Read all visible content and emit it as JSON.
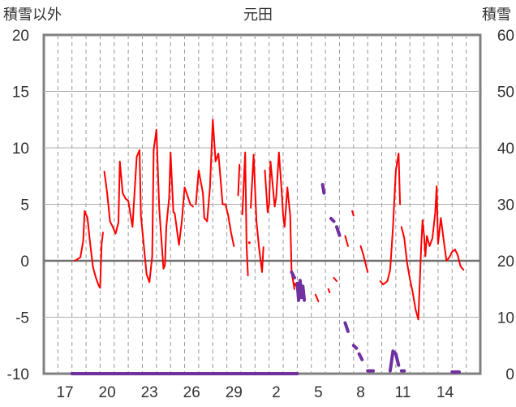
{
  "chart_data": {
    "type": "line",
    "title": "元田",
    "left_axis_label": "積雪以外",
    "right_axis_label": "積雪",
    "left_axis": {
      "range": [
        -10,
        20
      ],
      "ticks": [
        -10,
        -5,
        0,
        5,
        10,
        15,
        20
      ],
      "tick_labels": [
        "-10",
        "-5",
        "0",
        "5",
        "10",
        "15",
        "20"
      ]
    },
    "right_axis": {
      "range": [
        0,
        60
      ],
      "ticks": [
        0,
        10,
        20,
        30,
        40,
        50,
        60
      ],
      "tick_labels": [
        "0",
        "10",
        "20",
        "30",
        "40",
        "50",
        "60"
      ]
    },
    "x_axis": {
      "range": [
        0,
        31
      ],
      "tick_positions": [
        1,
        4,
        7,
        10,
        13,
        16,
        19,
        22,
        25,
        28
      ],
      "tick_labels": [
        "17",
        "20",
        "23",
        "26",
        "29",
        "2",
        "5",
        "8",
        "11",
        "14"
      ]
    },
    "grid": {
      "horizontal": true,
      "vertical_dashed": true
    },
    "series": [
      {
        "axis": "left",
        "color": "#ff0000",
        "segments": [
          [
            [
              2.2,
              0.0
            ],
            [
              2.6,
              0.3
            ],
            [
              2.8,
              1.8
            ],
            [
              2.9,
              4.4
            ],
            [
              3.1,
              3.8
            ],
            [
              3.3,
              1.4
            ],
            [
              3.5,
              -0.6
            ],
            [
              3.7,
              -1.5
            ],
            [
              3.9,
              -2.2
            ],
            [
              4.0,
              -2.4
            ],
            [
              4.1,
              1.4
            ],
            [
              4.2,
              2.5
            ]
          ],
          [
            [
              4.3,
              7.9
            ],
            [
              4.5,
              6.0
            ],
            [
              4.7,
              3.5
            ],
            [
              4.9,
              3.0
            ],
            [
              5.1,
              2.4
            ],
            [
              5.3,
              3.4
            ],
            [
              5.4,
              8.8
            ],
            [
              5.6,
              6.0
            ],
            [
              5.8,
              5.5
            ],
            [
              6.0,
              5.3
            ],
            [
              6.3,
              3.0
            ],
            [
              6.6,
              9.2
            ],
            [
              6.8,
              9.8
            ],
            [
              6.9,
              4.0
            ],
            [
              7.1,
              1.4
            ],
            [
              7.3,
              -1.2
            ],
            [
              7.5,
              -1.9
            ],
            [
              7.7,
              0.4
            ],
            [
              7.8,
              9.8
            ],
            [
              8.0,
              11.6
            ],
            [
              8.2,
              4.6
            ],
            [
              8.4,
              1.0
            ],
            [
              8.5,
              -0.7
            ],
            [
              8.6,
              -0.4
            ],
            [
              8.7,
              3.0
            ],
            [
              8.9,
              5.6
            ],
            [
              9.0,
              9.6
            ],
            [
              9.2,
              4.3
            ],
            [
              9.3,
              4.2
            ],
            [
              9.5,
              2.3
            ],
            [
              9.6,
              1.4
            ],
            [
              9.8,
              3.5
            ],
            [
              10.0,
              6.5
            ],
            [
              10.2,
              5.8
            ],
            [
              10.4,
              5.0
            ],
            [
              10.6,
              4.8
            ]
          ],
          [
            [
              10.8,
              5.0
            ],
            [
              11.0,
              8.0
            ],
            [
              11.3,
              6.0
            ],
            [
              11.4,
              3.8
            ],
            [
              11.6,
              3.5
            ],
            [
              11.8,
              6.5
            ],
            [
              12.0,
              12.5
            ],
            [
              12.2,
              8.8
            ],
            [
              12.4,
              9.5
            ],
            [
              12.6,
              6.5
            ],
            [
              12.7,
              5.0
            ],
            [
              12.9,
              5.0
            ],
            [
              13.1,
              4.0
            ],
            [
              13.3,
              2.5
            ],
            [
              13.5,
              1.3
            ]
          ],
          [
            [
              13.8,
              5.8
            ],
            [
              13.9,
              8.5
            ]
          ],
          [
            [
              14.1,
              4.1
            ],
            [
              14.3,
              9.6
            ],
            [
              14.4,
              1.4
            ],
            [
              14.5,
              -1.3
            ]
          ],
          [
            [
              14.6,
              1.6
            ]
          ],
          [
            [
              14.7,
              4.7
            ],
            [
              14.9,
              9.4
            ],
            [
              15.1,
              3.5
            ],
            [
              15.3,
              1.0
            ],
            [
              15.5,
              -1.0
            ],
            [
              15.6,
              1.2
            ]
          ],
          [
            [
              15.7,
              8.0
            ],
            [
              15.9,
              4.3
            ],
            [
              16.0,
              5.0
            ],
            [
              16.1,
              8.8
            ],
            [
              16.4,
              4.8
            ],
            [
              16.5,
              5.6
            ],
            [
              16.7,
              9.6
            ],
            [
              16.9,
              6.0
            ],
            [
              17.0,
              4.0
            ],
            [
              17.1,
              3.0
            ],
            [
              17.3,
              6.5
            ],
            [
              17.5,
              4.0
            ],
            [
              17.6,
              -1.0
            ],
            [
              17.8,
              -2.5
            ]
          ],
          [
            [
              17.8,
              -2.0
            ],
            [
              18.0,
              -2.4
            ]
          ],
          [
            [
              18.0,
              -2.8
            ],
            [
              18.2,
              -3.2
            ]
          ],
          [
            [
              19.3,
              -3.0
            ],
            [
              19.5,
              -3.6
            ]
          ],
          [
            [
              20.2,
              -2.5
            ],
            [
              20.3,
              -2.8
            ]
          ],
          [
            [
              20.6,
              -1.5
            ],
            [
              20.8,
              -1.8
            ]
          ],
          [
            [
              21.4,
              2.2
            ],
            [
              21.6,
              1.3
            ]
          ],
          [
            [
              21.9,
              4.4
            ],
            [
              22.0,
              4.0
            ]
          ],
          [
            [
              22.5,
              1.3
            ],
            [
              22.7,
              0.5
            ],
            [
              22.9,
              -0.5
            ],
            [
              23.0,
              -1.0
            ]
          ],
          [
            [
              23.9,
              -1.8
            ],
            [
              24.1,
              -2.1
            ],
            [
              24.4,
              -1.8
            ],
            [
              24.6,
              -0.8
            ],
            [
              24.8,
              3.0
            ],
            [
              25.0,
              8.0
            ],
            [
              25.2,
              9.5
            ],
            [
              25.3,
              5.0
            ]
          ],
          [
            [
              25.4,
              3.0
            ],
            [
              25.6,
              2.0
            ],
            [
              25.8,
              -0.2
            ],
            [
              26.0,
              -1.6
            ],
            [
              26.2,
              -2.8
            ],
            [
              26.4,
              -4.3
            ],
            [
              26.6,
              -5.2
            ],
            [
              26.8,
              1.2
            ],
            [
              26.9,
              3.6
            ],
            [
              27.0,
              2.3
            ],
            [
              27.1,
              0.4
            ],
            [
              27.2,
              2.2
            ],
            [
              27.4,
              1.3
            ],
            [
              27.6,
              2.0
            ],
            [
              27.8,
              4.3
            ],
            [
              27.9,
              6.6
            ],
            [
              28.0,
              1.5
            ],
            [
              28.2,
              3.8
            ],
            [
              28.4,
              1.8
            ],
            [
              28.6,
              0.0
            ],
            [
              28.8,
              0.3
            ],
            [
              29.0,
              0.8
            ],
            [
              29.2,
              1.0
            ],
            [
              29.4,
              0.5
            ],
            [
              29.6,
              -0.5
            ],
            [
              29.8,
              -0.8
            ]
          ]
        ]
      },
      {
        "axis": "right",
        "color": "#7030a0",
        "segments": [
          [
            [
              2.0,
              0.0
            ],
            [
              18.0,
              0.0
            ]
          ],
          [
            [
              17.6,
              18.0
            ],
            [
              17.8,
              17.0
            ]
          ],
          [
            [
              18.0,
              16.0
            ],
            [
              18.1,
              13.0
            ],
            [
              18.2,
              16.5
            ],
            [
              18.3,
              13.5
            ],
            [
              18.4,
              15.5
            ],
            [
              18.5,
              13.0
            ]
          ],
          [
            [
              19.8,
              33.5
            ],
            [
              19.9,
              32.0
            ]
          ],
          [
            [
              20.4,
              27.5
            ],
            [
              20.6,
              27.0
            ]
          ],
          [
            [
              20.8,
              26.0
            ],
            [
              21.0,
              24.5
            ]
          ],
          [
            [
              21.4,
              9.0
            ],
            [
              21.6,
              7.5
            ]
          ],
          [
            [
              22.0,
              5.0
            ],
            [
              22.2,
              4.5
            ]
          ],
          [
            [
              22.4,
              3.5
            ],
            [
              22.6,
              2.5
            ]
          ],
          [
            [
              23.0,
              0.5
            ],
            [
              23.4,
              0.5
            ]
          ],
          [
            [
              24.6,
              0.5
            ],
            [
              24.8,
              4.0
            ],
            [
              25.0,
              3.5
            ],
            [
              25.2,
              1.5
            ]
          ],
          [
            [
              25.4,
              0.5
            ],
            [
              25.6,
              0.5
            ]
          ],
          [
            [
              29.0,
              0.3
            ],
            [
              29.5,
              0.3
            ]
          ]
        ]
      }
    ]
  }
}
